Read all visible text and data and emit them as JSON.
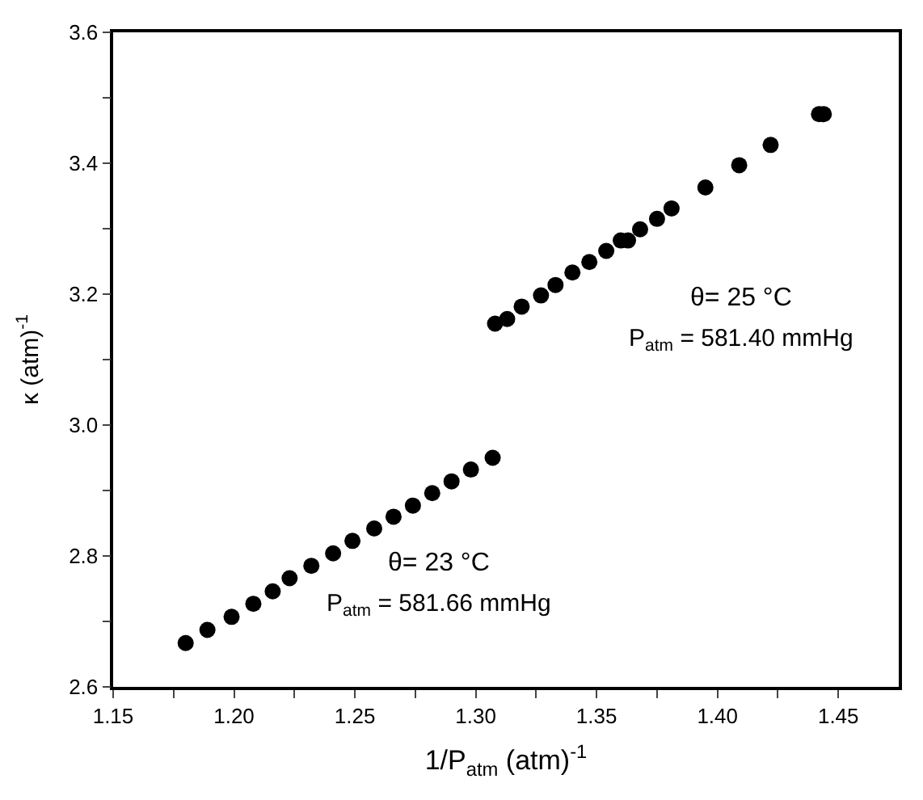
{
  "chart_data": {
    "type": "scatter",
    "xlabel": "1/P$_{atm}$ (atm)$^{-1}$",
    "ylabel": "κ (atm)$^{-1}$",
    "annotations": [
      "θ= 25 °C",
      "P$_{atm}$ = 581.40 mmHg",
      "θ= 23 °C",
      "P$_{atm}$ = 581.66 mmHg"
    ],
    "series": [
      {
        "color": "#000000",
        "x": [
          1.18,
          1.189,
          1.199,
          1.208,
          1.216,
          1.223,
          1.232,
          1.241,
          1.249,
          1.258,
          1.266,
          1.274,
          1.282,
          1.29,
          1.298,
          1.307
        ],
        "values": [
          2.667,
          2.687,
          2.707,
          2.727,
          2.746,
          2.766,
          2.785,
          2.804,
          2.823,
          2.842,
          2.86,
          2.877,
          2.896,
          2.914,
          2.932,
          2.95
        ]
      },
      {
        "color": "#000000",
        "x": [
          1.308,
          1.313,
          1.319,
          1.327,
          1.333,
          1.34,
          1.347,
          1.354,
          1.36,
          1.363,
          1.368,
          1.375,
          1.381,
          1.395,
          1.409,
          1.422,
          1.442,
          1.444
        ],
        "values": [
          3.155,
          3.162,
          3.181,
          3.198,
          3.214,
          3.233,
          3.249,
          3.266,
          3.282,
          3.282,
          3.299,
          3.315,
          3.331,
          3.363,
          3.397,
          3.428,
          3.475,
          3.475
        ]
      }
    ],
    "xlim": [
      1.15,
      1.475
    ],
    "xticks": [
      1.15,
      {
        "value": 1.175,
        "label": null
      },
      "1.20",
      {
        "value": 1.225,
        "label": null
      },
      1.25,
      {
        "value": 1.275,
        "label": null
      },
      "1.30",
      {
        "value": 1.325,
        "label": null
      },
      1.35,
      {
        "value": 1.375,
        "label": null
      },
      "1.40",
      {
        "value": 1.425,
        "label": null
      },
      1.45
    ],
    "ylim": [
      2.6,
      3.6
    ],
    "yticks": [
      2.6,
      {
        "value": 2.7,
        "label": null
      },
      2.8,
      {
        "value": 2.9,
        "label": null
      },
      "3.0",
      {
        "value": 3.1,
        "label": null
      },
      3.2,
      {
        "value": 3.3,
        "label": null
      },
      3.4,
      {
        "value": 3.5,
        "label": null
      },
      3.6
    ],
    "marker": "circle"
  }
}
